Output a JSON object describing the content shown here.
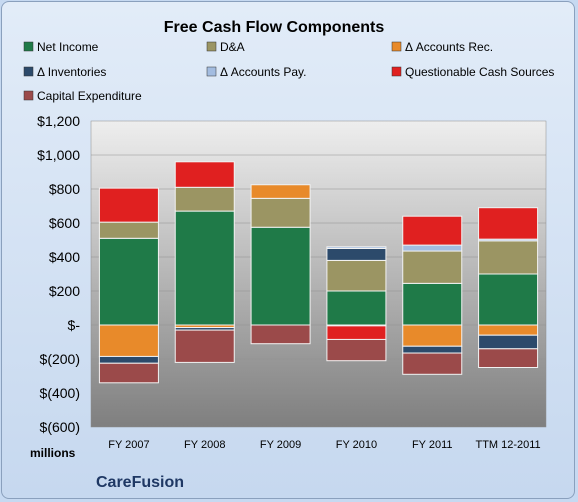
{
  "chart_data": {
    "type": "bar",
    "stacked": true,
    "title": "Free Cash Flow Components",
    "ylabel": "millions",
    "company": "CareFusion",
    "ylim": [
      -600,
      1200
    ],
    "yticks": [
      "$1,200",
      "$1,000",
      "$800",
      "$600",
      "$400",
      "$200",
      "$-",
      "$(200)",
      "$(400)",
      "$(600)"
    ],
    "ytick_values": [
      1200,
      1000,
      800,
      600,
      400,
      200,
      0,
      -200,
      -400,
      -600
    ],
    "categories": [
      "FY 2007",
      "FY 2008",
      "FY 2009",
      "FY 2010",
      "FY 2011",
      "TTM 12-2011"
    ],
    "legend_position": "top",
    "series": [
      {
        "name": "Net Income",
        "color": "#1f7a48",
        "values": [
          510,
          670,
          575,
          200,
          245,
          300
        ]
      },
      {
        "name": "D&A",
        "color": "#9b9563",
        "values": [
          95,
          140,
          170,
          180,
          190,
          195
        ]
      },
      {
        "name": "Δ Accounts Rec.",
        "color": "#e88a2a",
        "values": [
          -185,
          -15,
          80,
          -5,
          -125,
          -60
        ]
      },
      {
        "name": "Δ Inventories",
        "color": "#2c4a6b",
        "values": [
          -40,
          -15,
          0,
          70,
          -40,
          -80
        ]
      },
      {
        "name": "Δ Accounts Pay.",
        "color": "#a3bce0",
        "values": [
          0,
          0,
          0,
          10,
          35,
          10
        ]
      },
      {
        "name": "Questionable Cash Sources",
        "color": "#e02020",
        "values": [
          200,
          150,
          0,
          -80,
          170,
          185
        ]
      },
      {
        "name": "Capital Expenditure",
        "color": "#9b4a4a",
        "values": [
          -115,
          -190,
          -110,
          -125,
          -125,
          -110
        ]
      }
    ]
  }
}
